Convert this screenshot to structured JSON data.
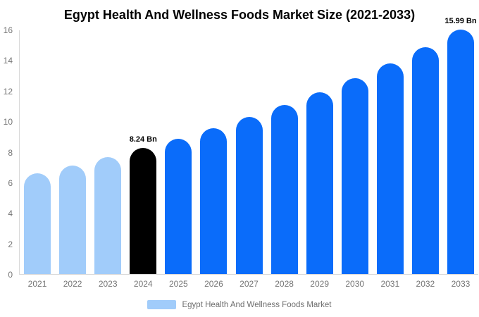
{
  "figure": {
    "title": "Egypt Health And Wellness Foods Market Size (2021-2033)"
  },
  "colors": {
    "background": "#FFFFFF",
    "historical_bar": "#A1CCFA",
    "base_year_bar": "#000000",
    "forecast_bar": "#0A6CFA",
    "axis_line": "#D9D9D9",
    "tick_text": "#757575",
    "annotation_text": "#000000",
    "legend_text": "#6E6E6E"
  },
  "chart_data": {
    "type": "bar",
    "title": "Egypt Health And Wellness Foods Market Size (2021-2033)",
    "xlabel": "",
    "ylabel": "",
    "categories": [
      "2021",
      "2022",
      "2023",
      "2024",
      "2025",
      "2026",
      "2027",
      "2028",
      "2029",
      "2030",
      "2031",
      "2032",
      "2033"
    ],
    "values": [
      6.6,
      7.1,
      7.65,
      8.24,
      8.87,
      9.55,
      10.28,
      11.07,
      11.92,
      12.83,
      13.81,
      14.87,
      15.99
    ],
    "point_colors": [
      "#A1CCFA",
      "#A1CCFA",
      "#A1CCFA",
      "#000000",
      "#0A6CFA",
      "#0A6CFA",
      "#0A6CFA",
      "#0A6CFA",
      "#0A6CFA",
      "#0A6CFA",
      "#0A6CFA",
      "#0A6CFA",
      "#0A6CFA"
    ],
    "ylim": [
      0,
      16
    ],
    "yticks": [
      0,
      2,
      4,
      6,
      8,
      10,
      12,
      14,
      16
    ],
    "grid": false,
    "annotations": [
      {
        "category": "2024",
        "text": "8.24 Bn"
      },
      {
        "category": "2033",
        "text": "15.99 Bn"
      }
    ],
    "legend_position": "bottom",
    "legend": [
      {
        "label": "Egypt Health And Wellness Foods Market",
        "swatch_color": "#A1CCFA"
      }
    ]
  }
}
